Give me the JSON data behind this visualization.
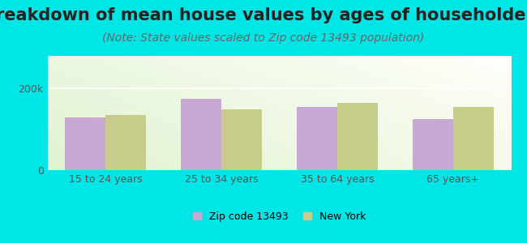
{
  "title": "Breakdown of mean house values by ages of householders",
  "subtitle": "(Note: State values scaled to Zip code 13493 population)",
  "categories": [
    "15 to 24 years",
    "25 to 34 years",
    "35 to 64 years",
    "65 years+"
  ],
  "zip_values": [
    130000,
    175000,
    155000,
    125000
  ],
  "ny_values": [
    135000,
    148000,
    165000,
    155000
  ],
  "zip_color": "#c9a8d4",
  "ny_color": "#c8cc8a",
  "background_outer": "#00e5e5",
  "ylim": [
    0,
    280000
  ],
  "yticks": [
    0,
    200000
  ],
  "ytick_labels": [
    "0",
    "200k"
  ],
  "legend_zip_label": "Zip code 13493",
  "legend_ny_label": "New York",
  "bar_width": 0.35,
  "title_fontsize": 15,
  "subtitle_fontsize": 10
}
